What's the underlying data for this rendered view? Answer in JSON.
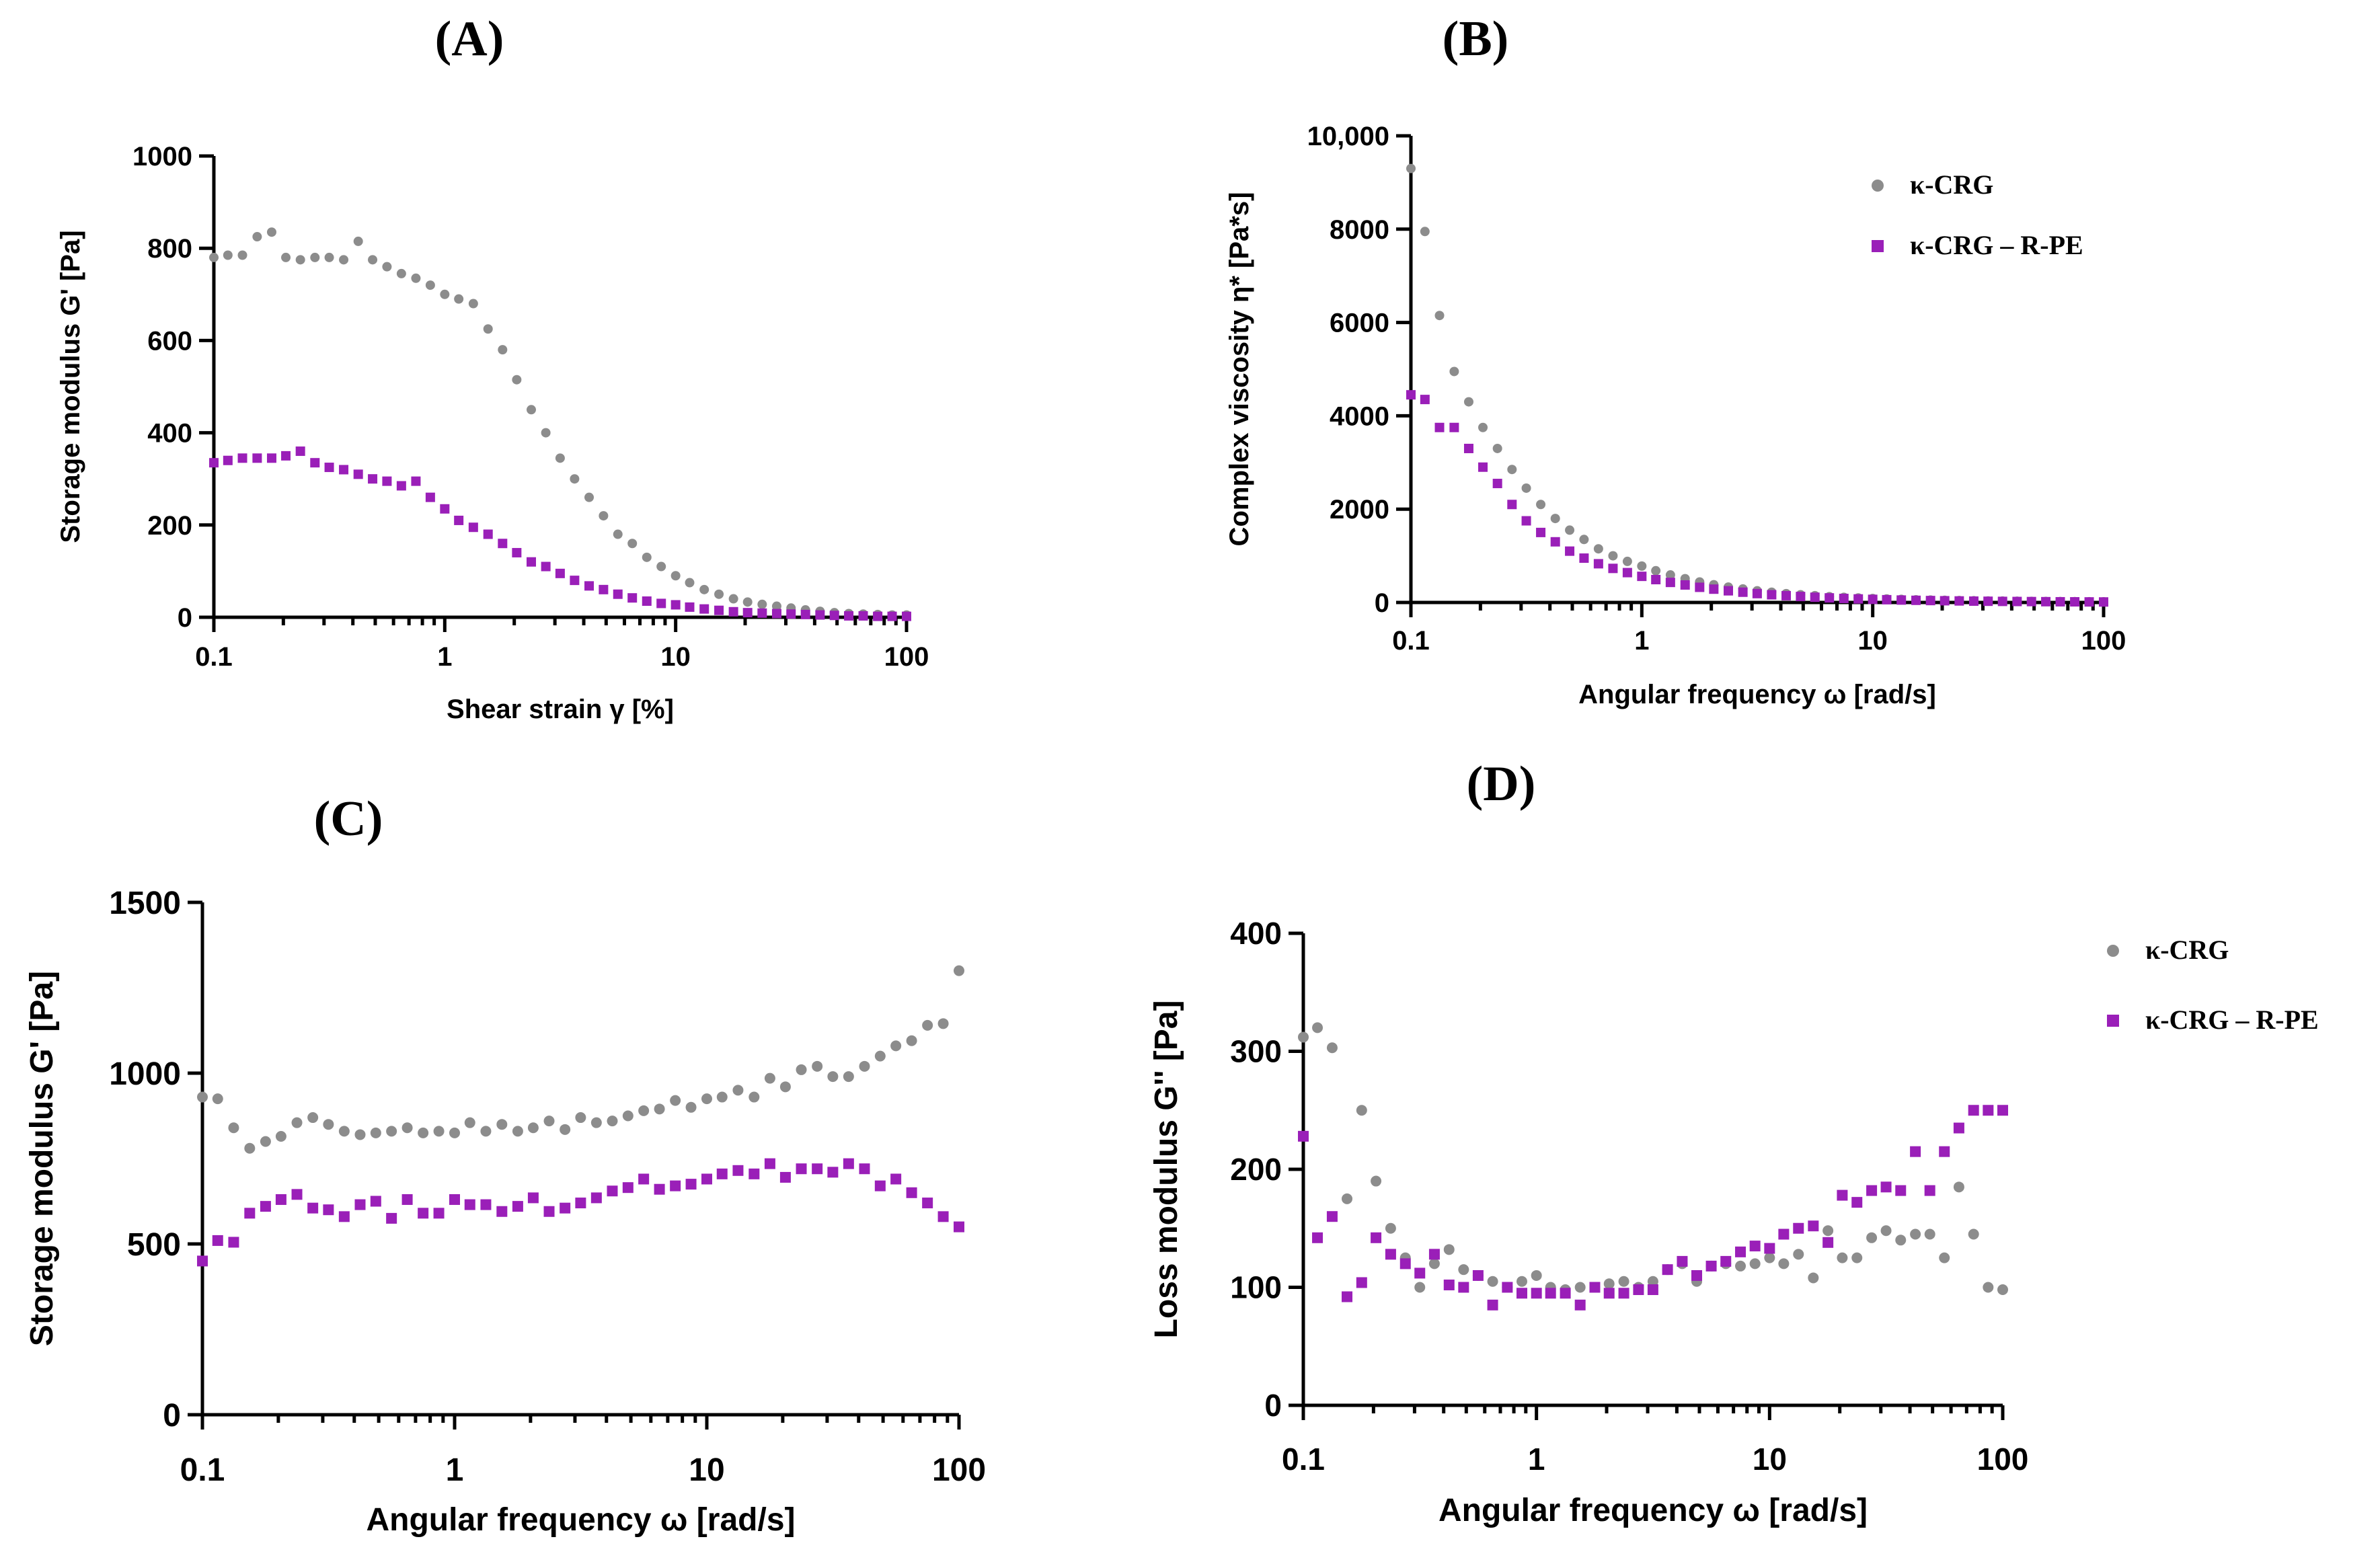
{
  "colors": {
    "kcrg": "#8c8c8c",
    "kcrg_rpe": "#9a1fb8",
    "axis": "#000000"
  },
  "chart_data": [
    {
      "id": "A",
      "type": "scatter",
      "panel_label": "(A)",
      "xlabel": "Shear strain γ [%]",
      "ylabel": "Storage modulus G' [Pa]",
      "xscale": "log",
      "xlim": [
        0.1,
        100
      ],
      "ylim": [
        0,
        1000
      ],
      "xticks": [
        0.1,
        1,
        10,
        100
      ],
      "xtick_labels": [
        "0.1",
        "1",
        "10",
        "100"
      ],
      "yticks": [
        0,
        200,
        400,
        600,
        800,
        1000
      ],
      "ytick_labels": [
        "0",
        "200",
        "400",
        "600",
        "800",
        "1000"
      ],
      "legend": null,
      "series": [
        {
          "name": "κ-CRG",
          "marker": "circle",
          "x": [
            0.1,
            0.115,
            0.133,
            0.154,
            0.178,
            0.205,
            0.237,
            0.274,
            0.316,
            0.365,
            0.422,
            0.487,
            0.562,
            0.649,
            0.75,
            0.866,
            1,
            1.15,
            1.33,
            1.54,
            1.78,
            2.05,
            2.37,
            2.74,
            3.16,
            3.65,
            4.22,
            4.87,
            5.62,
            6.49,
            7.5,
            8.66,
            10,
            11.5,
            13.3,
            15.4,
            17.8,
            20.5,
            23.7,
            27.4,
            31.6,
            36.5,
            42.2,
            48.7,
            56.2,
            64.9,
            75,
            86.6,
            100
          ],
          "y": [
            780,
            785,
            785,
            825,
            835,
            780,
            775,
            780,
            780,
            775,
            815,
            775,
            760,
            745,
            735,
            720,
            700,
            690,
            680,
            625,
            580,
            515,
            450,
            400,
            345,
            300,
            260,
            220,
            180,
            160,
            130,
            110,
            90,
            75,
            60,
            50,
            40,
            33,
            28,
            24,
            20,
            16,
            13,
            10,
            8,
            7,
            6,
            5,
            5
          ]
        },
        {
          "name": "κ-CRG – R-PE",
          "marker": "square",
          "x": [
            0.1,
            0.115,
            0.133,
            0.154,
            0.178,
            0.205,
            0.237,
            0.274,
            0.316,
            0.365,
            0.422,
            0.487,
            0.562,
            0.649,
            0.75,
            0.866,
            1,
            1.15,
            1.33,
            1.54,
            1.78,
            2.05,
            2.37,
            2.74,
            3.16,
            3.65,
            4.22,
            4.87,
            5.62,
            6.49,
            7.5,
            8.66,
            10,
            11.5,
            13.3,
            15.4,
            17.8,
            20.5,
            23.7,
            27.4,
            31.6,
            36.5,
            42.2,
            48.7,
            56.2,
            64.9,
            75,
            86.6,
            100
          ],
          "y": [
            335,
            340,
            345,
            345,
            345,
            350,
            360,
            335,
            325,
            320,
            310,
            300,
            295,
            285,
            295,
            260,
            235,
            210,
            195,
            180,
            160,
            140,
            120,
            110,
            95,
            80,
            68,
            60,
            50,
            42,
            35,
            30,
            27,
            22,
            18,
            15,
            12,
            10,
            9,
            8,
            7,
            6,
            5,
            4,
            3,
            3,
            2,
            2,
            2
          ]
        }
      ]
    },
    {
      "id": "B",
      "type": "scatter",
      "panel_label": "(B)",
      "xlabel": "Angular frequency ω [rad/s]",
      "ylabel": "Complex viscosity η* [Pa*s]",
      "xscale": "log",
      "xlim": [
        0.1,
        100
      ],
      "ylim": [
        0,
        10000
      ],
      "xticks": [
        0.1,
        1,
        10,
        100
      ],
      "xtick_labels": [
        "0.1",
        "1",
        "10",
        "100"
      ],
      "yticks": [
        0,
        2000,
        4000,
        6000,
        8000,
        10000
      ],
      "ytick_labels": [
        "0",
        "2000",
        "4000",
        "6000",
        "8000",
        "10,000"
      ],
      "legend": {
        "position": "top-right",
        "entries": [
          "κ-CRG",
          "κ-CRG – R-PE"
        ]
      },
      "series": [
        {
          "name": "κ-CRG",
          "marker": "circle",
          "x": [
            0.1,
            0.115,
            0.133,
            0.154,
            0.178,
            0.205,
            0.237,
            0.274,
            0.316,
            0.365,
            0.422,
            0.487,
            0.562,
            0.649,
            0.75,
            0.866,
            1,
            1.15,
            1.33,
            1.54,
            1.78,
            2.05,
            2.37,
            2.74,
            3.16,
            3.65,
            4.22,
            4.87,
            5.62,
            6.49,
            7.5,
            8.66,
            10,
            11.5,
            13.3,
            15.4,
            17.8,
            20.5,
            23.7,
            27.4,
            31.6,
            36.5,
            42.2,
            48.7,
            56.2,
            64.9,
            75,
            86.6,
            100
          ],
          "y": [
            9300,
            7950,
            6150,
            4950,
            4300,
            3750,
            3300,
            2850,
            2450,
            2100,
            1800,
            1550,
            1350,
            1150,
            1000,
            880,
            780,
            680,
            590,
            510,
            440,
            380,
            330,
            290,
            250,
            220,
            190,
            165,
            145,
            125,
            110,
            97,
            85,
            75,
            66,
            58,
            52,
            46,
            41,
            37,
            33,
            30,
            27,
            24,
            22,
            20,
            18,
            16,
            15
          ]
        },
        {
          "name": "κ-CRG – R-PE",
          "marker": "square",
          "x": [
            0.1,
            0.115,
            0.133,
            0.154,
            0.178,
            0.205,
            0.237,
            0.274,
            0.316,
            0.365,
            0.422,
            0.487,
            0.562,
            0.649,
            0.75,
            0.866,
            1,
            1.15,
            1.33,
            1.54,
            1.78,
            2.05,
            2.37,
            2.74,
            3.16,
            3.65,
            4.22,
            4.87,
            5.62,
            6.49,
            7.5,
            8.66,
            10,
            11.5,
            13.3,
            15.4,
            17.8,
            20.5,
            23.7,
            27.4,
            31.6,
            36.5,
            42.2,
            48.7,
            56.2,
            64.9,
            75,
            86.6,
            100
          ],
          "y": [
            4450,
            4350,
            3750,
            3750,
            3300,
            2900,
            2550,
            2100,
            1750,
            1500,
            1300,
            1100,
            950,
            830,
            730,
            640,
            560,
            490,
            430,
            375,
            325,
            285,
            250,
            220,
            190,
            165,
            145,
            128,
            112,
            98,
            86,
            76,
            67,
            59,
            52,
            46,
            41,
            37,
            33,
            29,
            26,
            23,
            21,
            19,
            17,
            15,
            14,
            12,
            11
          ]
        }
      ]
    },
    {
      "id": "C",
      "type": "scatter",
      "panel_label": "(C)",
      "xlabel": "Angular frequency ω [rad/s]",
      "ylabel": "Storage modulus G' [Pa]",
      "xscale": "log",
      "xlim": [
        0.1,
        100
      ],
      "ylim": [
        0,
        1500
      ],
      "xticks": [
        0.1,
        1,
        10,
        100
      ],
      "xtick_labels": [
        "0.1",
        "1",
        "10",
        "100"
      ],
      "yticks": [
        0,
        500,
        1000,
        1500
      ],
      "ytick_labels": [
        "0",
        "500",
        "1000",
        "1500"
      ],
      "legend": null,
      "series": [
        {
          "name": "κ-CRG",
          "marker": "circle",
          "x": [
            0.1,
            0.115,
            0.133,
            0.154,
            0.178,
            0.205,
            0.237,
            0.274,
            0.316,
            0.365,
            0.422,
            0.487,
            0.562,
            0.649,
            0.75,
            0.866,
            1,
            1.15,
            1.33,
            1.54,
            1.78,
            2.05,
            2.37,
            2.74,
            3.16,
            3.65,
            4.22,
            4.87,
            5.62,
            6.49,
            7.5,
            8.66,
            10,
            11.5,
            13.3,
            15.4,
            17.8,
            20.5,
            23.7,
            27.4,
            31.6,
            36.5,
            42.2,
            48.7,
            56.2,
            64.9,
            75,
            86.6,
            100
          ],
          "y": [
            930,
            925,
            840,
            780,
            800,
            815,
            855,
            870,
            850,
            830,
            820,
            825,
            830,
            840,
            825,
            830,
            825,
            855,
            830,
            850,
            830,
            840,
            860,
            835,
            870,
            855,
            860,
            875,
            890,
            895,
            920,
            900,
            925,
            930,
            950,
            930,
            985,
            960,
            1010,
            1020,
            990,
            990,
            1020,
            1050,
            1080,
            1095,
            1140,
            1145,
            1300
          ]
        },
        {
          "name": "κ-CRG – R-PE",
          "marker": "square",
          "x": [
            0.1,
            0.115,
            0.133,
            0.154,
            0.178,
            0.205,
            0.237,
            0.274,
            0.316,
            0.365,
            0.422,
            0.487,
            0.562,
            0.649,
            0.75,
            0.866,
            1,
            1.15,
            1.33,
            1.54,
            1.78,
            2.05,
            2.37,
            2.74,
            3.16,
            3.65,
            4.22,
            4.87,
            5.62,
            6.49,
            7.5,
            8.66,
            10,
            11.5,
            13.3,
            15.4,
            17.8,
            20.5,
            23.7,
            27.4,
            31.6,
            36.5,
            42.2,
            48.7,
            56.2,
            64.9,
            75,
            86.6,
            100
          ],
          "y": [
            450,
            510,
            505,
            590,
            610,
            630,
            645,
            605,
            600,
            580,
            615,
            625,
            575,
            630,
            590,
            590,
            630,
            615,
            615,
            595,
            610,
            635,
            595,
            605,
            620,
            635,
            655,
            665,
            690,
            660,
            670,
            675,
            690,
            705,
            715,
            705,
            735,
            695,
            720,
            720,
            710,
            735,
            720,
            670,
            690,
            650,
            620,
            580,
            550
          ]
        }
      ]
    },
    {
      "id": "D",
      "type": "scatter",
      "panel_label": "(D)",
      "xlabel": "Angular frequency ω [rad/s]",
      "ylabel": "Loss modulus G'' [Pa]",
      "xscale": "log",
      "xlim": [
        0.1,
        100
      ],
      "ylim": [
        0,
        400
      ],
      "xticks": [
        0.1,
        1,
        10,
        100
      ],
      "xtick_labels": [
        "0.1",
        "1",
        "10",
        "100"
      ],
      "yticks": [
        0,
        100,
        200,
        300,
        400
      ],
      "ytick_labels": [
        "0",
        "100",
        "200",
        "300",
        "400"
      ],
      "legend": {
        "position": "top-right",
        "entries": [
          "κ-CRG",
          "κ-CRG – R-PE"
        ]
      },
      "series": [
        {
          "name": "κ-CRG",
          "marker": "circle",
          "x": [
            0.1,
            0.115,
            0.133,
            0.154,
            0.178,
            0.205,
            0.237,
            0.274,
            0.316,
            0.365,
            0.422,
            0.487,
            0.562,
            0.649,
            0.75,
            0.866,
            1,
            1.15,
            1.33,
            1.54,
            1.78,
            2.05,
            2.37,
            2.74,
            3.16,
            3.65,
            4.22,
            4.87,
            5.62,
            6.49,
            7.5,
            8.66,
            10,
            11.5,
            13.3,
            15.4,
            17.8,
            20.5,
            23.7,
            27.4,
            31.6,
            36.5,
            42.2,
            48.7,
            56.2,
            64.9,
            75,
            86.6,
            100
          ],
          "y": [
            312,
            320,
            303,
            175,
            250,
            190,
            150,
            125,
            100,
            120,
            132,
            115,
            110,
            105,
            100,
            105,
            110,
            100,
            98,
            100,
            100,
            103,
            105,
            100,
            105,
            115,
            120,
            105,
            118,
            120,
            118,
            120,
            125,
            120,
            128,
            108,
            148,
            125,
            125,
            142,
            148,
            140,
            145,
            145,
            125,
            185,
            145,
            100,
            98
          ]
        },
        {
          "name": "κ-CRG – R-PE",
          "marker": "square",
          "x": [
            0.1,
            0.115,
            0.133,
            0.154,
            0.178,
            0.205,
            0.237,
            0.274,
            0.316,
            0.365,
            0.422,
            0.487,
            0.562,
            0.649,
            0.75,
            0.866,
            1,
            1.15,
            1.33,
            1.54,
            1.78,
            2.05,
            2.37,
            2.74,
            3.16,
            3.65,
            4.22,
            4.87,
            5.62,
            6.49,
            7.5,
            8.66,
            10,
            11.5,
            13.3,
            15.4,
            17.8,
            20.5,
            23.7,
            27.4,
            31.6,
            36.5,
            42.2,
            48.7,
            56.2,
            64.9,
            75,
            86.6,
            100
          ],
          "y": [
            228,
            142,
            160,
            92,
            104,
            142,
            128,
            120,
            112,
            128,
            102,
            100,
            110,
            85,
            100,
            95,
            95,
            95,
            95,
            85,
            100,
            95,
            95,
            98,
            98,
            115,
            122,
            110,
            118,
            122,
            130,
            135,
            133,
            145,
            150,
            152,
            138,
            178,
            172,
            182,
            185,
            182,
            215,
            182,
            215,
            235,
            250,
            250,
            250
          ]
        }
      ]
    }
  ]
}
